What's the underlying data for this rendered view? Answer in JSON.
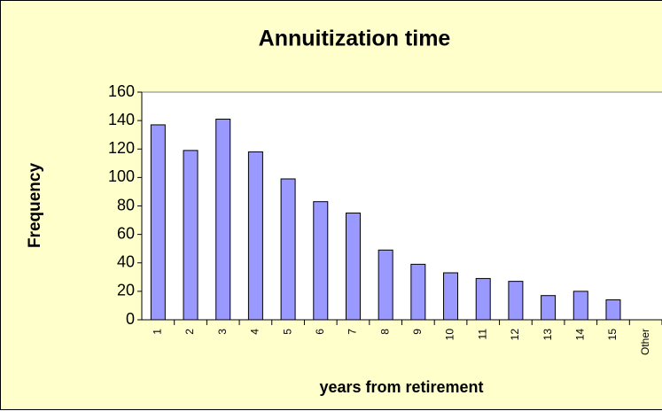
{
  "chart_data": {
    "type": "bar",
    "title": "Annuitization time",
    "x_label": "years from retirement",
    "y_label": "Frequency",
    "categories": [
      "1",
      "2",
      "3",
      "4",
      "5",
      "6",
      "7",
      "8",
      "9",
      "10",
      "11",
      "12",
      "13",
      "14",
      "15",
      "Other"
    ],
    "values": [
      137,
      119,
      141,
      118,
      99,
      83,
      75,
      49,
      39,
      33,
      29,
      27,
      17,
      20,
      14,
      0
    ],
    "color": "#9999ff",
    "ylim": [
      0,
      160
    ],
    "yticks": [
      0,
      20,
      40,
      60,
      80,
      100,
      120,
      140,
      160
    ],
    "grid": false
  }
}
